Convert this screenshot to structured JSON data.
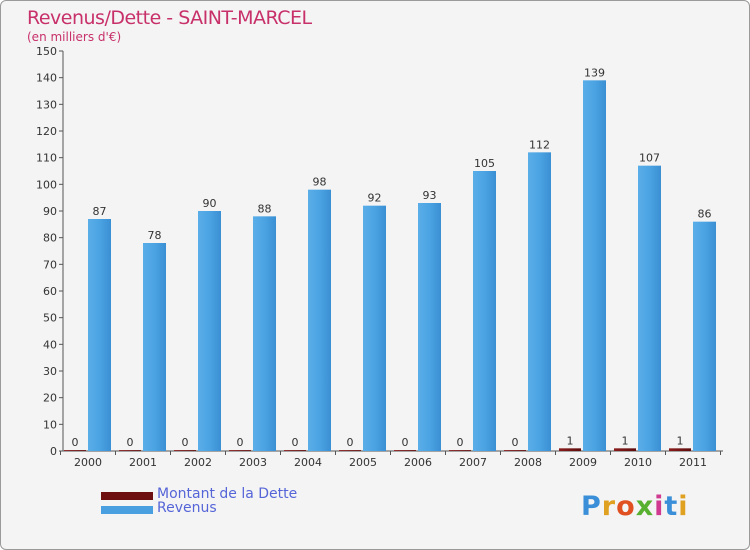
{
  "header": {
    "title": "Revenus/Dette - SAINT-MARCEL",
    "subtitle": "(en milliers d'€)"
  },
  "chart_data": {
    "type": "bar",
    "categories": [
      "2000",
      "2001",
      "2002",
      "2003",
      "2004",
      "2005",
      "2006",
      "2007",
      "2008",
      "2009",
      "2010",
      "2011"
    ],
    "series": [
      {
        "name": "Montant de la Dette",
        "values": [
          0,
          0,
          0,
          0,
          0,
          0,
          0,
          0,
          0,
          1,
          1,
          1
        ],
        "color": "#7a1414"
      },
      {
        "name": "Revenus",
        "values": [
          87,
          78,
          90,
          88,
          98,
          92,
          93,
          105,
          112,
          139,
          107,
          86
        ],
        "color": "#4a9fe0"
      }
    ],
    "ylim": [
      0,
      150
    ],
    "yticks": [
      0,
      10,
      20,
      30,
      40,
      50,
      60,
      70,
      80,
      90,
      100,
      110,
      120,
      130,
      140,
      150
    ],
    "grid": false,
    "legend": "bottom-left"
  },
  "logo": {
    "letters": [
      "P",
      "r",
      "o",
      "x",
      "i",
      "t",
      "i"
    ],
    "colors": [
      "#3a8fd8",
      "#e0a020",
      "#e05020",
      "#58b030",
      "#d03a90",
      "#3a8fd8",
      "#e0a020"
    ]
  }
}
